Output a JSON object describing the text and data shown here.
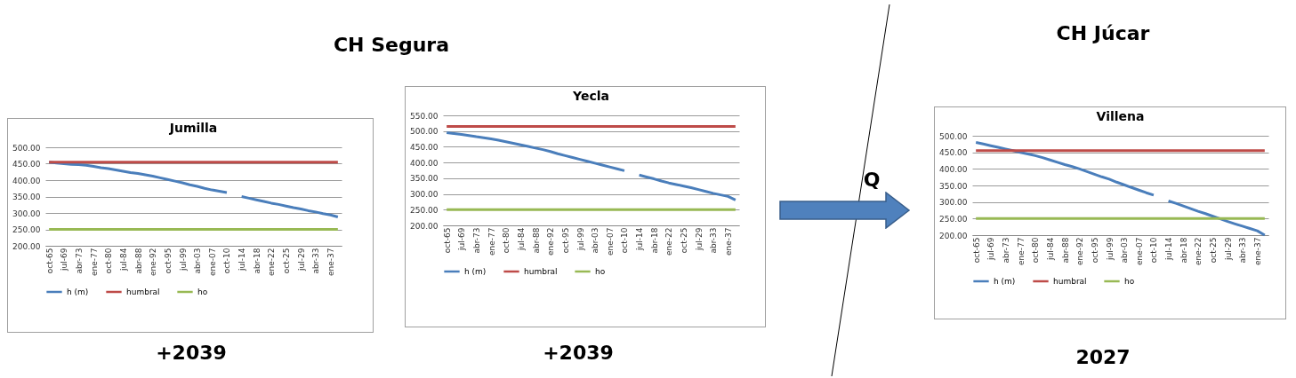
{
  "chart_data": [
    {
      "type": "line",
      "title": "Jumilla",
      "annotations": [
        "CH Segura",
        "+2039"
      ],
      "categories": [
        "oct-65",
        null,
        "jul-69",
        null,
        "abr-73",
        null,
        "ene-77",
        null,
        "oct-80",
        null,
        "jul-84",
        null,
        "abr-88",
        null,
        "ene-92",
        null,
        "oct-95",
        null,
        "jul-99",
        null,
        "abr-03",
        null,
        "ene-07",
        null,
        "oct-10",
        null,
        "jul-14",
        null,
        "abr-18",
        null,
        "ene-22",
        null,
        "oct-25",
        null,
        "jul-29",
        null,
        "abr-33",
        null,
        "ene-37",
        null
      ],
      "ylim": [
        200,
        500
      ],
      "yticks": [
        {
          "value": 200,
          "label": "200.00"
        },
        {
          "value": 250,
          "label": "250.00"
        },
        {
          "value": 300,
          "label": "300.00"
        },
        {
          "value": 350,
          "label": "350.00"
        },
        {
          "value": 400,
          "label": "400.00"
        },
        {
          "value": 450,
          "label": "450.00"
        },
        {
          "value": 500,
          "label": "500.00"
        }
      ],
      "grid": "y",
      "legend": "bottom",
      "series": [
        {
          "name": "h (m)",
          "color": "#4a7ebb",
          "values": [
            455,
            452,
            450,
            448,
            447,
            445,
            442,
            438,
            435,
            431,
            427,
            423,
            420,
            416,
            412,
            407,
            402,
            397,
            392,
            386,
            381,
            375,
            370,
            366,
            362,
            null,
            350,
            345,
            340,
            335,
            330,
            326,
            321,
            316,
            312,
            307,
            303,
            298,
            294,
            288
          ]
        },
        {
          "name": "humbral",
          "color": "#be4b48",
          "values": [
            455,
            455,
            455,
            455,
            455,
            455,
            455,
            455,
            455,
            455,
            455,
            455,
            455,
            455,
            455,
            455,
            455,
            455,
            455,
            455,
            455,
            455,
            455,
            455,
            455,
            455,
            455,
            455,
            455,
            455,
            455,
            455,
            455,
            455,
            455,
            455,
            455,
            455,
            455,
            455
          ]
        },
        {
          "name": "ho",
          "color": "#98b954",
          "values": [
            250,
            250,
            250,
            250,
            250,
            250,
            250,
            250,
            250,
            250,
            250,
            250,
            250,
            250,
            250,
            250,
            250,
            250,
            250,
            250,
            250,
            250,
            250,
            250,
            250,
            250,
            250,
            250,
            250,
            250,
            250,
            250,
            250,
            250,
            250,
            250,
            250,
            250,
            250,
            250
          ]
        }
      ]
    },
    {
      "type": "line",
      "title": "Yecla",
      "annotations": [
        "+2039"
      ],
      "categories": [
        "oct-65",
        null,
        "jul-69",
        null,
        "abr-73",
        null,
        "ene-77",
        null,
        "oct-80",
        null,
        "jul-84",
        null,
        "abr-88",
        null,
        "ene-92",
        null,
        "oct-95",
        null,
        "jul-99",
        null,
        "abr-03",
        null,
        "ene-07",
        null,
        "oct-10",
        null,
        "jul-14",
        null,
        "abr-18",
        null,
        "ene-22",
        null,
        "oct-25",
        null,
        "jul-29",
        null,
        "abr-33",
        null,
        "ene-37",
        null
      ],
      "ylim": [
        200,
        550
      ],
      "yticks": [
        {
          "value": 200,
          "label": "200.00"
        },
        {
          "value": 250,
          "label": "250.00"
        },
        {
          "value": 300,
          "label": "300.00"
        },
        {
          "value": 350,
          "label": "350.00"
        },
        {
          "value": 400,
          "label": "400.00"
        },
        {
          "value": 450,
          "label": "450.00"
        },
        {
          "value": 500,
          "label": "500.00"
        },
        {
          "value": 550,
          "label": "550.00"
        }
      ],
      "grid": "y",
      "legend": "bottom",
      "series": [
        {
          "name": "h (m)",
          "color": "#4a7ebb",
          "values": [
            495,
            492,
            489,
            486,
            482,
            479,
            475,
            471,
            466,
            461,
            456,
            451,
            446,
            441,
            435,
            428,
            422,
            416,
            410,
            404,
            398,
            392,
            386,
            380,
            374,
            null,
            360,
            354,
            348,
            341,
            335,
            330,
            325,
            320,
            314,
            308,
            302,
            297,
            292,
            281
          ]
        },
        {
          "name": "humbral",
          "color": "#be4b48",
          "values": [
            515,
            515,
            515,
            515,
            515,
            515,
            515,
            515,
            515,
            515,
            515,
            515,
            515,
            515,
            515,
            515,
            515,
            515,
            515,
            515,
            515,
            515,
            515,
            515,
            515,
            515,
            515,
            515,
            515,
            515,
            515,
            515,
            515,
            515,
            515,
            515,
            515,
            515,
            515,
            515
          ]
        },
        {
          "name": "ho",
          "color": "#98b954",
          "values": [
            250,
            250,
            250,
            250,
            250,
            250,
            250,
            250,
            250,
            250,
            250,
            250,
            250,
            250,
            250,
            250,
            250,
            250,
            250,
            250,
            250,
            250,
            250,
            250,
            250,
            250,
            250,
            250,
            250,
            250,
            250,
            250,
            250,
            250,
            250,
            250,
            250,
            250,
            250,
            250
          ]
        }
      ]
    },
    {
      "type": "line",
      "title": "Villena",
      "annotations": [
        "CH Júcar",
        "Q",
        "2027"
      ],
      "categories": [
        "oct-65",
        null,
        "jul-69",
        null,
        "abr-73",
        null,
        "ene-77",
        null,
        "oct-80",
        null,
        "jul-84",
        null,
        "abr-88",
        null,
        "ene-92",
        null,
        "oct-95",
        null,
        "jul-99",
        null,
        "abr-03",
        null,
        "ene-07",
        null,
        "oct-10",
        null,
        "jul-14",
        null,
        "abr-18",
        null,
        "ene-22",
        null,
        "oct-25",
        null,
        "jul-29",
        null,
        "abr-33",
        null,
        "ene-37",
        null
      ],
      "ylim": [
        200,
        500
      ],
      "yticks": [
        {
          "value": 200,
          "label": "200.00"
        },
        {
          "value": 250,
          "label": "250.00"
        },
        {
          "value": 300,
          "label": "300.00"
        },
        {
          "value": 350,
          "label": "350.00"
        },
        {
          "value": 400,
          "label": "400.00"
        },
        {
          "value": 450,
          "label": "450.00"
        },
        {
          "value": 500,
          "label": "500.00"
        }
      ],
      "grid": "y",
      "legend": "bottom",
      "series": [
        {
          "name": "h (m)",
          "color": "#4a7ebb",
          "values": [
            480,
            475,
            470,
            465,
            460,
            455,
            450,
            445,
            440,
            434,
            427,
            420,
            413,
            407,
            400,
            392,
            384,
            376,
            369,
            360,
            352,
            344,
            336,
            328,
            321,
            null,
            303,
            296,
            288,
            280,
            272,
            265,
            257,
            249,
            241,
            234,
            227,
            220,
            213,
            200
          ]
        },
        {
          "name": "humbral",
          "color": "#be4b48",
          "values": [
            455,
            455,
            455,
            455,
            455,
            455,
            455,
            455,
            455,
            455,
            455,
            455,
            455,
            455,
            455,
            455,
            455,
            455,
            455,
            455,
            455,
            455,
            455,
            455,
            455,
            455,
            455,
            455,
            455,
            455,
            455,
            455,
            455,
            455,
            455,
            455,
            455,
            455,
            455,
            455
          ]
        },
        {
          "name": "ho",
          "color": "#98b954",
          "values": [
            250,
            250,
            250,
            250,
            250,
            250,
            250,
            250,
            250,
            250,
            250,
            250,
            250,
            250,
            250,
            250,
            250,
            250,
            250,
            250,
            250,
            250,
            250,
            250,
            250,
            250,
            250,
            250,
            250,
            250,
            250,
            250,
            250,
            250,
            250,
            250,
            250,
            250,
            250,
            250
          ]
        }
      ]
    }
  ]
}
